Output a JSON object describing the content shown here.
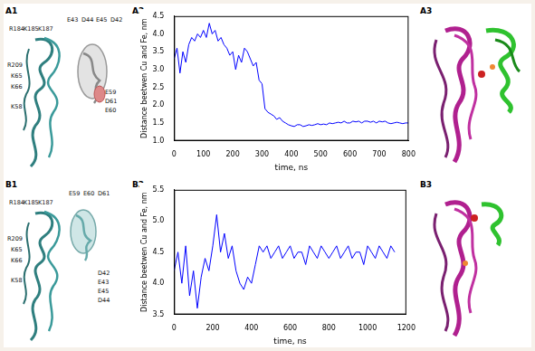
{
  "panel_labels": [
    "A1",
    "A2",
    "A3",
    "B1",
    "B2",
    "B3"
  ],
  "residue_labels": {
    "A1": [
      "R184",
      "K185",
      "K187",
      "E43",
      "D44",
      "E45",
      "D42",
      "R209",
      "K65",
      "K66",
      "K58",
      "E59",
      "D61",
      "E60"
    ],
    "B1": [
      "R184",
      "K185",
      "K187",
      "E59",
      "E60",
      "D61",
      "R209",
      "K65",
      "K66",
      "K58",
      "D42",
      "E43",
      "E45",
      "D44"
    ]
  },
  "chart_data": [
    {
      "type": "line",
      "xlabel": "time, ns",
      "ylabel": "Distance beetwen Cu and Fe, nm",
      "color": "#0000ff",
      "grid": false,
      "xlim": [
        0,
        800
      ],
      "xticks": [
        0,
        100,
        200,
        300,
        400,
        500,
        600,
        700,
        800
      ],
      "ylim": [
        1,
        4.5
      ],
      "yticks": [
        {
          "value": 1,
          "label": "1.0"
        },
        1.5,
        {
          "value": 2,
          "label": "2.0"
        },
        2.5,
        {
          "value": 3,
          "label": "3.0"
        },
        3.5,
        {
          "value": 4,
          "label": "4.0"
        },
        4.5
      ],
      "x": [
        0,
        10,
        20,
        30,
        40,
        50,
        60,
        70,
        80,
        90,
        100,
        110,
        120,
        130,
        140,
        150,
        160,
        170,
        180,
        190,
        200,
        210,
        220,
        230,
        240,
        250,
        260,
        270,
        280,
        290,
        300,
        310,
        320,
        330,
        340,
        350,
        360,
        370,
        380,
        390,
        400,
        410,
        420,
        430,
        440,
        450,
        460,
        470,
        480,
        490,
        500,
        510,
        520,
        530,
        540,
        550,
        560,
        570,
        580,
        590,
        600,
        610,
        620,
        630,
        640,
        650,
        660,
        670,
        680,
        690,
        700,
        710,
        720,
        730,
        740,
        750,
        760,
        770,
        780,
        790,
        800
      ],
      "values": [
        3.3,
        3.6,
        2.9,
        3.5,
        3.2,
        3.7,
        3.9,
        3.8,
        4.0,
        3.9,
        4.1,
        3.9,
        4.3,
        4.0,
        4.1,
        3.8,
        3.9,
        3.7,
        3.6,
        3.4,
        3.5,
        3.0,
        3.4,
        3.2,
        3.6,
        3.5,
        3.3,
        3.1,
        3.2,
        2.7,
        2.6,
        1.9,
        1.8,
        1.75,
        1.7,
        1.6,
        1.65,
        1.55,
        1.5,
        1.45,
        1.42,
        1.4,
        1.45,
        1.45,
        1.4,
        1.42,
        1.45,
        1.43,
        1.45,
        1.48,
        1.45,
        1.47,
        1.45,
        1.5,
        1.48,
        1.5,
        1.52,
        1.5,
        1.55,
        1.5,
        1.5,
        1.55,
        1.53,
        1.55,
        1.5,
        1.55,
        1.55,
        1.52,
        1.55,
        1.5,
        1.55,
        1.53,
        1.55,
        1.5,
        1.48,
        1.5,
        1.52,
        1.5,
        1.48,
        1.5,
        1.5
      ]
    },
    {
      "type": "line",
      "xlabel": "time, ns",
      "ylabel": "Distance beetwen Cu and Fe, nm",
      "color": "#0000ff",
      "grid": false,
      "xlim": [
        0,
        1200
      ],
      "xticks": [
        0,
        200,
        400,
        600,
        800,
        1000,
        1200
      ],
      "ylim": [
        3.5,
        5.5
      ],
      "yticks": [
        3.5,
        {
          "value": 4,
          "label": "4.0"
        },
        4.5,
        {
          "value": 5,
          "label": "5.0"
        },
        5.5
      ],
      "x": [
        0,
        20,
        40,
        60,
        80,
        100,
        120,
        140,
        160,
        180,
        200,
        220,
        240,
        260,
        280,
        300,
        320,
        340,
        360,
        380,
        400,
        420,
        440,
        460,
        480,
        500,
        520,
        540,
        560,
        580,
        600,
        620,
        640,
        660,
        680,
        700,
        720,
        740,
        760,
        780,
        800,
        820,
        840,
        860,
        880,
        900,
        920,
        940,
        960,
        980,
        1000,
        1020,
        1040,
        1060,
        1080,
        1100,
        1120,
        1140
      ],
      "values": [
        4.2,
        4.5,
        4.0,
        4.6,
        3.8,
        4.2,
        3.6,
        4.1,
        4.4,
        4.2,
        4.6,
        5.1,
        4.5,
        4.8,
        4.4,
        4.6,
        4.2,
        4.0,
        3.9,
        4.1,
        4.0,
        4.3,
        4.6,
        4.5,
        4.6,
        4.4,
        4.5,
        4.6,
        4.4,
        4.5,
        4.6,
        4.4,
        4.5,
        4.5,
        4.3,
        4.6,
        4.5,
        4.4,
        4.6,
        4.5,
        4.4,
        4.5,
        4.6,
        4.4,
        4.5,
        4.6,
        4.4,
        4.5,
        4.5,
        4.3,
        4.6,
        4.5,
        4.4,
        4.6,
        4.5,
        4.4,
        4.6,
        4.5
      ]
    }
  ]
}
